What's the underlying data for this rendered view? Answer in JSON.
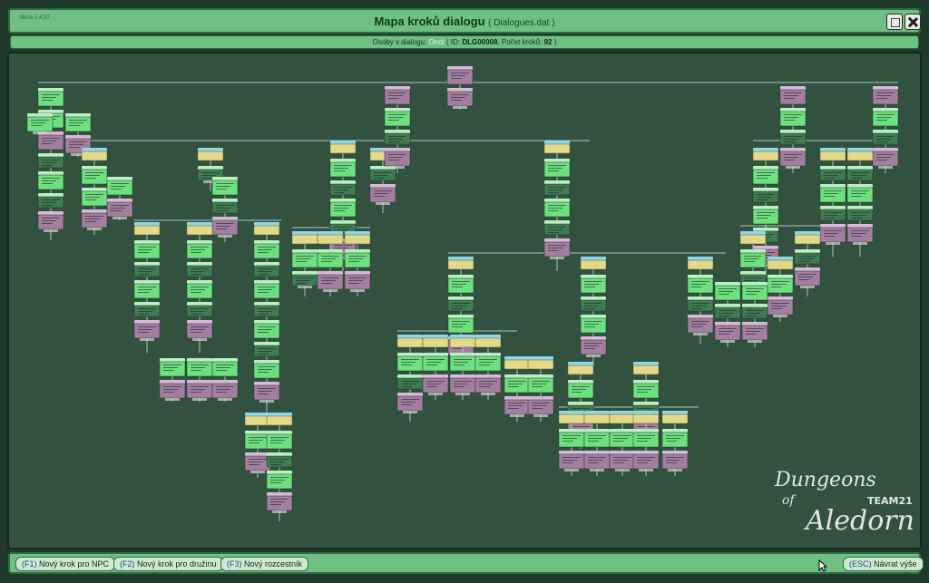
{
  "app": {
    "version": "Verze 1.4.37",
    "title": "Mapa kroků dialogu",
    "title_file": "( Dialogues.dat )"
  },
  "info": {
    "prefix": "Osoby v dialogu: ",
    "npc": "Onot",
    "id_label": " ( ID: ",
    "id": "DLG00008",
    "steps_label": ", Počet kroků: ",
    "steps": "92",
    "suffix": " )"
  },
  "toolbar": {
    "f1_key": "(F1)",
    "f1_label": " Nový krok pro NPC",
    "f2_key": "(F2)",
    "f2_label": " Nový krok pro družinu",
    "f3_key": "(F3)",
    "f3_label": " Nový rozcestník",
    "esc_key": "(ESC)",
    "esc_label": " Návrat výše"
  },
  "logo": {
    "line1": "Dungeons",
    "line2": "of",
    "line3": "Aledorn",
    "team": "TEAM21"
  },
  "colors": {
    "npc_node": "#a47ea0",
    "party_node": "#6ee07f",
    "dark_node": "#3f7a52",
    "crossroad": "#e3d98a",
    "header_blue": "#8fd6e8",
    "connector": "#a9c4c8"
  }
}
